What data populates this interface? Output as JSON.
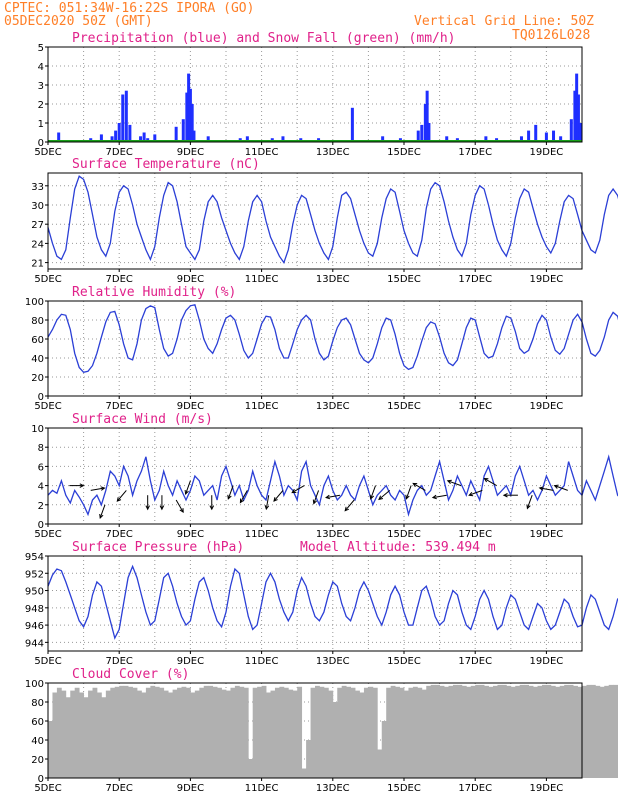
{
  "header": {
    "line1_left": "CPTEC:  051:34W-16:22S  IPORA (GO)",
    "line2_left": "05DEC2020 50Z (GMT)",
    "line1_right": "Vertical Grid Line: 50Z",
    "line2_right": "TQ0126L028"
  },
  "colors": {
    "header": "#ff7f27",
    "panel_title": "#e0218a",
    "precip": "#1f2fff",
    "snow": "#19a019",
    "line": "#2b3fd6",
    "wind_arrow": "#000000",
    "cloud": "#b0b0b0"
  },
  "x_axis": {
    "dates": [
      "5DEC",
      "7DEC",
      "9DEC",
      "11DEC",
      "13DEC",
      "15DEC",
      "17DEC",
      "19DEC"
    ],
    "day_start": 5,
    "day_end": 20
  },
  "chart_data": [
    {
      "type": "bar",
      "title": "Precipitation (blue) and Snow Fall (green) (mm/h)",
      "ylim": [
        0,
        5
      ],
      "yticks": [
        0,
        1,
        2,
        3,
        4,
        5
      ],
      "series": [
        {
          "name": "Precipitation",
          "x": [
            5.3,
            6.2,
            6.5,
            6.8,
            6.9,
            7.0,
            7.1,
            7.2,
            7.3,
            7.6,
            7.7,
            7.8,
            8.0,
            8.6,
            8.8,
            8.9,
            8.95,
            9.0,
            9.05,
            9.1,
            9.5,
            10.4,
            10.6,
            11.3,
            11.6,
            12.1,
            12.6,
            13.55,
            14.4,
            14.9,
            15.4,
            15.5,
            15.6,
            15.65,
            15.7,
            16.2,
            16.5,
            17.3,
            17.6,
            18.3,
            18.5,
            18.7,
            19.0,
            19.2,
            19.4,
            19.7,
            19.8,
            19.85,
            19.9,
            19.95
          ],
          "values": [
            0.5,
            0.2,
            0.4,
            0.3,
            0.6,
            1.0,
            2.5,
            2.7,
            0.9,
            0.3,
            0.5,
            0.2,
            0.4,
            0.8,
            1.2,
            2.6,
            3.6,
            2.8,
            2.0,
            0.6,
            0.3,
            0.2,
            0.3,
            0.2,
            0.3,
            0.2,
            0.2,
            1.8,
            0.3,
            0.2,
            0.6,
            0.9,
            2.0,
            2.7,
            1.0,
            0.3,
            0.2,
            0.3,
            0.2,
            0.3,
            0.6,
            0.9,
            0.5,
            0.6,
            0.3,
            1.2,
            2.7,
            3.6,
            2.5,
            1.0
          ]
        },
        {
          "name": "Snow Fall",
          "values": [
            0
          ]
        }
      ]
    },
    {
      "type": "line",
      "title": "Surface Temperature (nC)",
      "ylim": [
        20,
        35
      ],
      "yticks": [
        21,
        24,
        27,
        30,
        33
      ],
      "x_start": 5,
      "x_step": 0.125,
      "values": [
        26.5,
        24.0,
        22.0,
        21.5,
        23.0,
        28.0,
        32.5,
        34.5,
        34.0,
        32.0,
        28.5,
        25.0,
        23.0,
        22.0,
        24.0,
        29.0,
        32.0,
        33.0,
        32.5,
        30.0,
        27.0,
        25.0,
        23.0,
        21.5,
        23.5,
        28.0,
        31.5,
        33.5,
        33.0,
        30.5,
        27.0,
        23.5,
        22.5,
        21.5,
        23.0,
        27.5,
        30.5,
        31.5,
        30.5,
        28.0,
        26.0,
        24.0,
        22.5,
        21.5,
        23.5,
        27.5,
        30.5,
        31.5,
        30.5,
        27.5,
        25.0,
        23.5,
        22.0,
        21.0,
        23.0,
        27.0,
        30.0,
        31.5,
        31.0,
        28.5,
        26.0,
        24.0,
        22.5,
        21.5,
        23.5,
        28.0,
        31.5,
        32.0,
        31.0,
        28.5,
        26.0,
        24.0,
        22.5,
        22.0,
        24.0,
        28.0,
        31.0,
        32.5,
        32.0,
        29.0,
        26.0,
        24.0,
        22.5,
        22.0,
        24.5,
        29.5,
        32.5,
        33.5,
        33.0,
        30.5,
        27.5,
        25.0,
        23.0,
        22.0,
        24.0,
        28.5,
        31.5,
        33.0,
        32.5,
        30.0,
        27.0,
        24.5,
        23.0,
        22.0,
        24.0,
        28.0,
        31.0,
        32.5,
        32.0,
        29.5,
        27.0,
        25.0,
        23.5,
        22.5,
        24.0,
        27.5,
        30.5,
        31.5,
        31.0,
        28.5,
        26.0,
        24.5,
        23.0,
        22.5,
        24.5,
        28.5,
        31.5,
        32.5,
        31.5,
        29.0,
        27.0,
        25.0,
        23.5,
        22.5,
        24.5,
        28.5,
        31.5,
        32.0,
        31.0,
        29.0,
        26.5,
        24.5,
        23.0,
        22.5,
        24.5,
        28.5,
        31.0,
        32.0,
        31.0,
        28.5,
        26.5,
        25.0,
        23.5,
        22.5,
        24.0,
        28.5,
        31.5,
        32.0,
        31.0,
        29.0,
        27.5,
        26.0,
        25.5,
        25.0,
        25.0
      ]
    },
    {
      "type": "line",
      "title": "Relative Humidity (%)",
      "ylim": [
        0,
        100
      ],
      "yticks": [
        0,
        20,
        40,
        60,
        80,
        100
      ],
      "x_start": 5,
      "x_step": 0.125,
      "values": [
        62,
        70,
        80,
        86,
        85,
        70,
        45,
        30,
        25,
        26,
        32,
        45,
        62,
        78,
        88,
        89,
        75,
        55,
        40,
        38,
        55,
        80,
        92,
        95,
        93,
        70,
        50,
        42,
        45,
        60,
        80,
        90,
        95,
        96,
        80,
        60,
        50,
        45,
        55,
        70,
        82,
        85,
        80,
        65,
        48,
        40,
        45,
        60,
        76,
        84,
        83,
        70,
        50,
        40,
        40,
        55,
        70,
        80,
        85,
        80,
        60,
        45,
        38,
        42,
        58,
        72,
        80,
        82,
        75,
        60,
        45,
        38,
        35,
        40,
        55,
        72,
        82,
        80,
        65,
        45,
        32,
        28,
        30,
        42,
        58,
        72,
        78,
        76,
        62,
        45,
        35,
        32,
        38,
        55,
        72,
        82,
        80,
        62,
        45,
        40,
        42,
        55,
        72,
        84,
        82,
        68,
        50,
        45,
        48,
        60,
        76,
        85,
        80,
        62,
        48,
        44,
        50,
        65,
        80,
        86,
        78,
        60,
        45,
        42,
        48,
        62,
        80,
        88,
        84,
        66,
        50,
        44,
        48,
        62,
        80,
        90,
        86,
        68,
        52,
        48,
        52,
        66,
        82,
        92,
        88,
        70,
        54,
        50,
        55,
        70,
        84,
        95,
        92,
        72,
        52,
        46,
        50,
        66,
        84,
        92,
        90
      ]
    },
    {
      "type": "line",
      "title": "Surface Wind (m/s)",
      "ylim": [
        0,
        10
      ],
      "yticks": [
        0,
        2,
        4,
        6,
        8,
        10
      ],
      "x_start": 5,
      "x_step": 0.125,
      "values": [
        3.0,
        3.5,
        3.2,
        4.5,
        3.0,
        2.2,
        3.5,
        2.8,
        2.0,
        1.0,
        2.5,
        3.0,
        2.0,
        3.5,
        5.5,
        5.0,
        4.0,
        6.0,
        5.0,
        3.0,
        4.5,
        5.5,
        7.0,
        4.5,
        2.5,
        3.5,
        5.5,
        4.0,
        3.0,
        4.5,
        3.5,
        2.5,
        3.5,
        5.0,
        4.5,
        3.0,
        3.5,
        4.0,
        2.5,
        5.0,
        6.0,
        4.5,
        3.0,
        4.0,
        2.5,
        3.5,
        5.5,
        4.0,
        3.0,
        2.5,
        4.5,
        6.5,
        5.0,
        3.0,
        4.0,
        3.5,
        2.5,
        5.5,
        6.5,
        4.0,
        3.0,
        2.0,
        4.0,
        5.0,
        3.5,
        2.5,
        3.0,
        4.0,
        3.0,
        2.5,
        4.0,
        5.0,
        3.5,
        2.0,
        3.0,
        3.5,
        4.0,
        3.0,
        2.5,
        3.5,
        3.0,
        1.0,
        2.5,
        3.5,
        4.0,
        3.0,
        3.5,
        5.0,
        6.5,
        4.5,
        2.5,
        3.5,
        5.0,
        4.0,
        3.0,
        4.5,
        3.5,
        2.5,
        5.0,
        6.0,
        4.5,
        3.0,
        3.5,
        4.0,
        3.0,
        5.0,
        6.0,
        4.5,
        3.0,
        3.5,
        2.5,
        3.5,
        5.0,
        4.0,
        3.0,
        3.5,
        4.0,
        6.5,
        5.0,
        3.5,
        3.0,
        4.5,
        3.5,
        2.5,
        4.0,
        5.5,
        7.0,
        5.0,
        3.0,
        3.5,
        4.5,
        3.0,
        2.5,
        4.0,
        5.0,
        3.5,
        3.0,
        4.0,
        5.0,
        6.0,
        4.0,
        3.0,
        2.5,
        3.5,
        3.0,
        2.5,
        3.5,
        3.0,
        2.0,
        3.0,
        2.5
      ]
    },
    {
      "type": "line",
      "title": "Surface Pressure (hPa)",
      "ylim": [
        943,
        954
      ],
      "yticks": [
        944,
        946,
        948,
        950,
        952,
        954
      ],
      "x_start": 5,
      "x_step": 0.125,
      "values": [
        950.5,
        951.8,
        952.5,
        952.3,
        951.0,
        949.5,
        948.0,
        946.5,
        945.8,
        947.0,
        949.5,
        951.0,
        950.5,
        948.5,
        946.5,
        944.5,
        945.5,
        948.5,
        951.5,
        952.8,
        951.5,
        949.5,
        947.5,
        946.0,
        946.5,
        949.0,
        951.5,
        952.0,
        950.5,
        948.5,
        947.0,
        946.0,
        946.5,
        949.0,
        951.0,
        951.5,
        950.0,
        948.0,
        946.5,
        945.8,
        947.5,
        950.5,
        952.5,
        952.0,
        949.5,
        947.0,
        945.5,
        946.0,
        948.5,
        951.0,
        952.0,
        951.0,
        949.0,
        947.5,
        946.5,
        947.5,
        950.0,
        951.5,
        950.5,
        948.5,
        947.0,
        946.5,
        947.5,
        949.5,
        951.0,
        950.5,
        948.5,
        947.0,
        946.5,
        948.0,
        950.0,
        951.0,
        950.0,
        948.5,
        947.0,
        946.0,
        947.5,
        949.5,
        950.5,
        949.5,
        947.5,
        946.0,
        946.0,
        948.0,
        950.0,
        950.5,
        949.0,
        947.0,
        946.0,
        946.5,
        948.5,
        950.0,
        949.5,
        947.5,
        946.0,
        945.5,
        947.0,
        949.0,
        950.0,
        949.0,
        947.0,
        945.5,
        946.0,
        948.0,
        949.5,
        949.0,
        947.5,
        946.0,
        945.5,
        947.0,
        948.5,
        948.0,
        946.5,
        945.5,
        946.0,
        947.5,
        949.0,
        948.5,
        947.0,
        945.8,
        946.0,
        948.0,
        949.5,
        949.0,
        947.5,
        946.0,
        945.5,
        947.0,
        949.0,
        949.5,
        948.0,
        946.5,
        945.5,
        946.5,
        948.5,
        949.5,
        948.5,
        947.0,
        945.5,
        945.0,
        946.5,
        948.5,
        949.0,
        947.5,
        946.0,
        945.0,
        944.5,
        946.0,
        947.5,
        948.0
      ]
    },
    {
      "type": "bar",
      "title": "Cloud Cover (%)",
      "ylim": [
        0,
        100
      ],
      "yticks": [
        0,
        20,
        40,
        60,
        80,
        100
      ],
      "x_start": 5,
      "x_step": 0.125,
      "values": [
        60,
        90,
        95,
        92,
        85,
        92,
        95,
        90,
        85,
        92,
        95,
        90,
        85,
        92,
        95,
        96,
        97,
        97,
        96,
        95,
        92,
        90,
        95,
        97,
        96,
        95,
        92,
        90,
        93,
        95,
        96,
        95,
        90,
        92,
        95,
        97,
        97,
        96,
        95,
        93,
        92,
        95,
        97,
        96,
        95,
        20,
        95,
        96,
        97,
        90,
        92,
        95,
        96,
        95,
        93,
        92,
        96,
        10,
        40,
        95,
        97,
        96,
        95,
        92,
        80,
        95,
        97,
        96,
        95,
        92,
        90,
        95,
        96,
        95,
        30,
        60,
        95,
        97,
        96,
        95,
        92,
        95,
        96,
        95,
        93,
        97,
        98,
        98,
        97,
        96,
        97,
        98,
        98,
        97,
        96,
        97,
        98,
        98,
        97,
        96,
        97,
        98,
        98,
        97,
        96,
        97,
        98,
        98,
        97,
        96,
        97,
        98,
        98,
        97,
        96,
        97,
        98,
        98,
        97,
        96,
        97,
        98,
        98,
        97,
        96,
        97,
        98,
        98,
        97,
        96,
        97,
        98,
        98,
        97,
        96,
        97,
        98,
        98,
        97,
        96,
        97,
        98,
        98,
        97,
        96,
        97,
        98,
        98,
        97,
        96,
        97
      ]
    }
  ],
  "panel_titles": {
    "precip": "Precipitation (blue) and Snow Fall (green) (mm/h)",
    "temp": "Surface Temperature (nC)",
    "rh": "Relative Humidity (%)",
    "wind": "Surface Wind (m/s)",
    "pres": "Surface Pressure (hPa)",
    "pres_alt": "Model Altitude: 539.494  m",
    "cloud": "Cloud Cover (%)"
  },
  "wind_arrows": {
    "x": [
      5.6,
      6.2,
      6.6,
      7.2,
      7.8,
      8.2,
      8.6,
      9.0,
      9.6,
      10.2,
      10.6,
      11.2,
      11.6,
      12.2,
      12.6,
      13.2,
      13.6,
      14.2,
      14.6,
      15.2,
      15.6,
      16.2,
      16.6,
      17.2,
      17.6,
      18.2,
      18.6,
      19.2,
      19.6
    ],
    "speed": [
      4.0,
      3.5,
      2.0,
      3.5,
      3.0,
      3.0,
      2.5,
      4.5,
      3.0,
      4.0,
      3.5,
      3.0,
      3.5,
      4.0,
      3.5,
      3.0,
      2.5,
      4.0,
      3.5,
      4.0,
      3.5,
      3.0,
      4.0,
      3.5,
      4.0,
      3.0,
      3.0,
      3.5,
      3.5
    ],
    "dir_deg": [
      90,
      80,
      200,
      220,
      180,
      180,
      150,
      200,
      180,
      200,
      210,
      190,
      220,
      240,
      200,
      260,
      220,
      200,
      230,
      200,
      300,
      260,
      290,
      250,
      300,
      270,
      200,
      280,
      290
    ]
  }
}
